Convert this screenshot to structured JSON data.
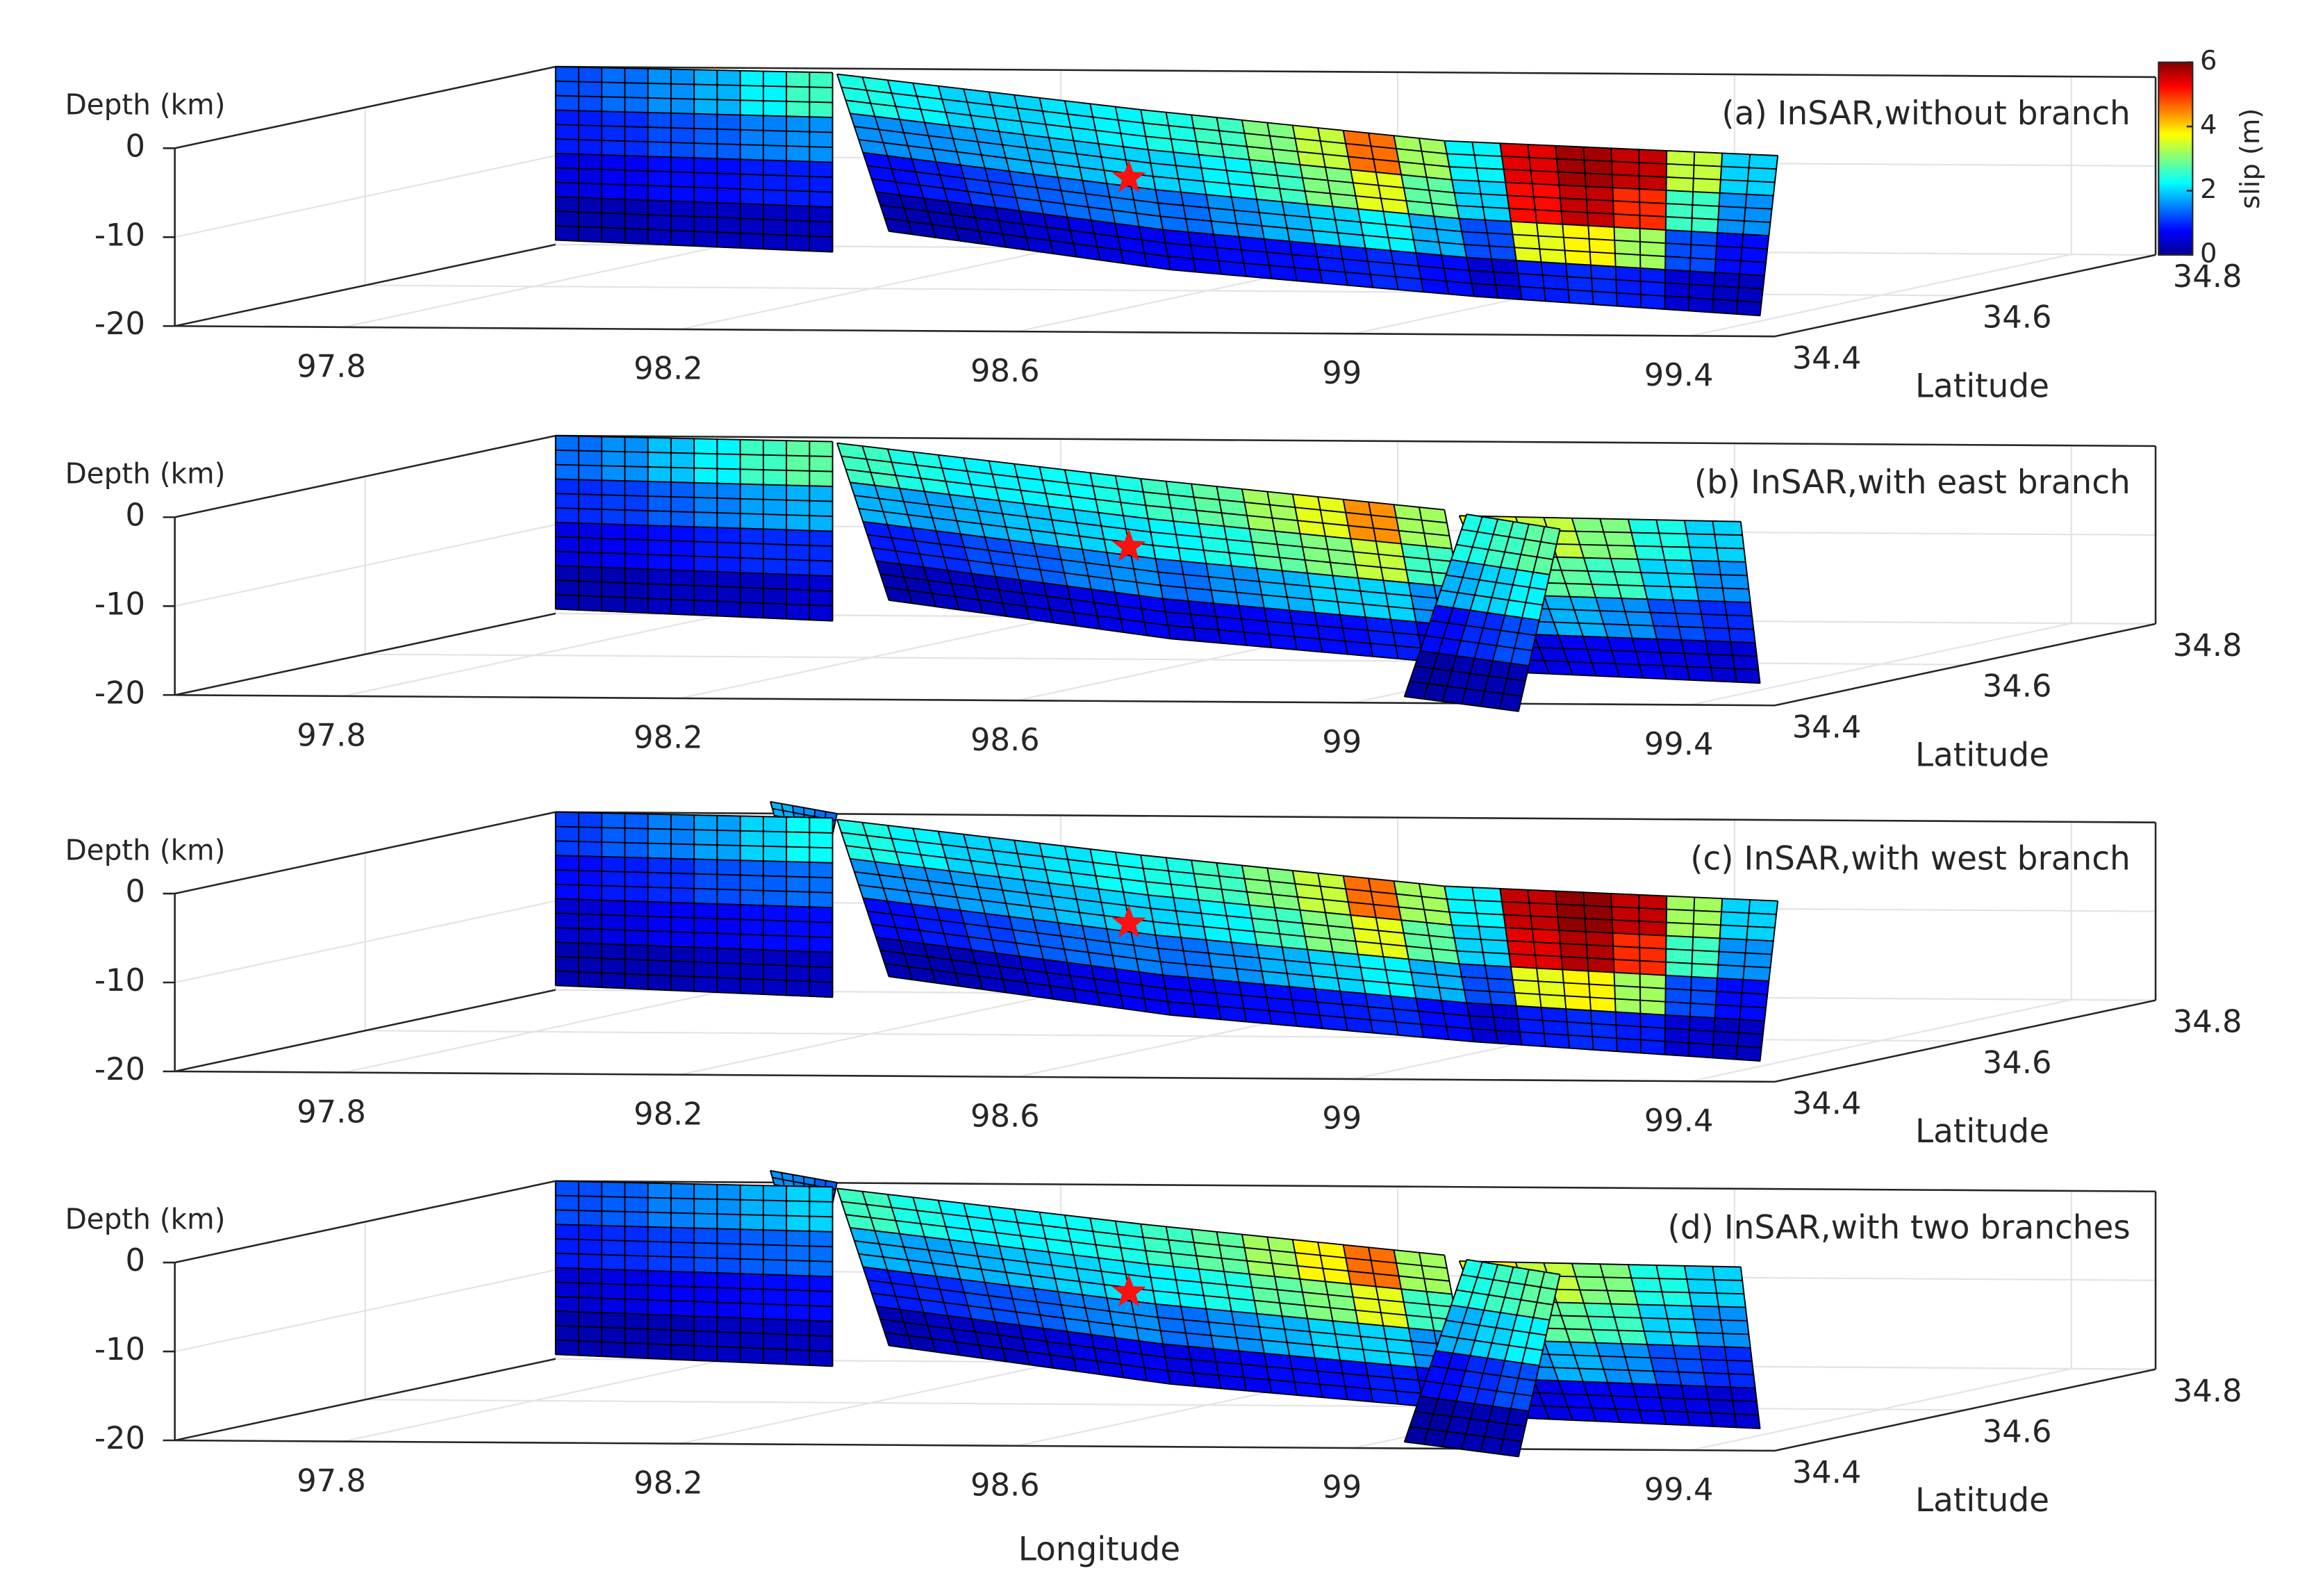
{
  "chart_data": [
    {
      "type": "surface3d",
      "title": "(a)  InSAR,without branch",
      "zlabel": "Depth (km)",
      "ylabel": "Latitude",
      "xlim": [
        97.6,
        99.5
      ],
      "ylim": [
        34.4,
        34.8
      ],
      "zlim": [
        -20,
        0
      ],
      "xticks": [
        97.8,
        98.2,
        98.6,
        99,
        99.4
      ],
      "yticks": [
        34.4,
        34.6,
        34.8
      ],
      "zticks": [
        0,
        -10,
        -20
      ],
      "grid": true,
      "colormap": "jet",
      "colorbar": {
        "label": "slip (m)",
        "lim": [
          0,
          6
        ],
        "ticks": [
          0,
          2,
          4,
          6
        ]
      },
      "segments": [
        {
          "slip": [
            [
              1.2,
              1.4,
              1.6,
              1.8,
              2.2,
              2.6
            ],
            [
              0.9,
              1.0,
              1.2,
              1.3,
              1.5,
              1.6
            ],
            [
              0.6,
              0.7,
              0.8,
              0.8,
              0.9,
              0.9
            ],
            [
              0.3,
              0.3,
              0.4,
              0.4,
              0.4,
              0.4
            ]
          ]
        },
        {
          "slip": [
            [
              2.4,
              2.2,
              2.0,
              2.0,
              2.1,
              2.2
            ],
            [
              1.6,
              1.6,
              1.7,
              1.8,
              1.9,
              2.0
            ],
            [
              0.8,
              0.9,
              1.1,
              1.3,
              1.4,
              1.5
            ],
            [
              0.3,
              0.3,
              0.4,
              0.5,
              0.6,
              0.7
            ]
          ]
        },
        {
          "slip": [
            [
              2.4,
              2.6,
              3.0,
              3.4,
              4.6,
              3.2
            ],
            [
              2.0,
              2.2,
              2.6,
              3.0,
              3.6,
              2.8
            ],
            [
              1.4,
              1.6,
              1.8,
              2.0,
              2.2,
              1.8
            ],
            [
              0.7,
              0.8,
              0.8,
              0.9,
              1.0,
              0.8
            ]
          ]
        },
        {
          "slip": [
            [
              2.2,
              5.4,
              5.8,
              5.6,
              3.4,
              2.0
            ],
            [
              2.0,
              5.2,
              5.6,
              5.0,
              2.6,
              1.6
            ],
            [
              1.2,
              3.6,
              3.8,
              3.2,
              1.2,
              0.8
            ],
            [
              0.5,
              0.9,
              1.0,
              0.9,
              0.5,
              0.4
            ]
          ]
        }
      ]
    },
    {
      "type": "surface3d",
      "title": "(b)  InSAR,with east branch",
      "zlabel": "Depth (km)",
      "ylabel": "Latitude",
      "xlim": [
        97.6,
        99.5
      ],
      "ylim": [
        34.4,
        34.8
      ],
      "zlim": [
        -20,
        0
      ],
      "xticks": [
        97.8,
        98.2,
        98.6,
        99,
        99.4
      ],
      "yticks": [
        34.4,
        34.6,
        34.8
      ],
      "zticks": [
        0,
        -10,
        -20
      ],
      "grid": true,
      "colormap": "jet",
      "segments": [
        {
          "slip": [
            [
              1.4,
              1.6,
              1.9,
              2.2,
              2.6,
              2.8
            ],
            [
              1.0,
              1.1,
              1.3,
              1.5,
              1.7,
              1.8
            ],
            [
              0.6,
              0.7,
              0.8,
              0.9,
              1.0,
              1.0
            ],
            [
              0.3,
              0.3,
              0.4,
              0.4,
              0.4,
              0.5
            ]
          ]
        },
        {
          "slip": [
            [
              2.6,
              2.4,
              2.2,
              2.2,
              2.3,
              2.4
            ],
            [
              1.8,
              1.7,
              1.8,
              1.9,
              2.0,
              2.1
            ],
            [
              0.9,
              1.0,
              1.2,
              1.3,
              1.5,
              1.6
            ],
            [
              0.3,
              0.4,
              0.4,
              0.5,
              0.6,
              0.7
            ]
          ]
        },
        {
          "slip": [
            [
              2.6,
              2.8,
              3.2,
              3.6,
              4.4,
              3.2
            ],
            [
              2.2,
              2.4,
              2.8,
              3.0,
              3.4,
              2.6
            ],
            [
              1.4,
              1.6,
              1.8,
              2.0,
              2.0,
              1.6
            ],
            [
              0.6,
              0.7,
              0.8,
              0.8,
              0.9,
              0.7
            ]
          ]
        },
        {
          "slip": [
            [
              3.6,
              3.4,
              3.0,
              2.4,
              2.0
            ],
            [
              2.8,
              2.8,
              2.6,
              2.0,
              1.6
            ],
            [
              1.6,
              1.8,
              1.6,
              1.2,
              1.0
            ],
            [
              0.6,
              0.7,
              0.7,
              0.6,
              0.5
            ]
          ]
        },
        {
          "slip": [
            [
              2.4,
              2.6,
              2.8
            ],
            [
              1.8,
              2.0,
              2.2
            ],
            [
              0.8,
              1.0,
              1.2
            ],
            [
              0.2,
              0.3,
              0.3
            ]
          ]
        }
      ]
    },
    {
      "type": "surface3d",
      "title": "(c)  InSAR,with west branch",
      "zlabel": "Depth (km)",
      "ylabel": "Latitude",
      "xlim": [
        97.6,
        99.5
      ],
      "ylim": [
        34.4,
        34.8
      ],
      "zlim": [
        -20,
        0
      ],
      "xticks": [
        97.8,
        98.2,
        98.6,
        99,
        99.4
      ],
      "yticks": [
        34.4,
        34.6,
        34.8
      ],
      "zticks": [
        0,
        -10,
        -20
      ],
      "grid": true,
      "colormap": "jet",
      "segments": [
        {
          "slip": [
            [
              1.8,
              1.6,
              1.4
            ]
          ]
        },
        {
          "slip": [
            [
              1.1,
              1.3,
              1.5,
              1.7,
              2.0,
              2.3
            ],
            [
              0.8,
              0.9,
              1.0,
              1.2,
              1.3,
              1.4
            ],
            [
              0.5,
              0.6,
              0.7,
              0.7,
              0.8,
              0.8
            ],
            [
              0.3,
              0.3,
              0.3,
              0.4,
              0.4,
              0.4
            ]
          ]
        },
        {
          "slip": [
            [
              2.4,
              2.2,
              2.0,
              2.0,
              2.1,
              2.3
            ],
            [
              1.6,
              1.6,
              1.7,
              1.8,
              1.9,
              2.0
            ],
            [
              0.8,
              0.9,
              1.1,
              1.3,
              1.4,
              1.5
            ],
            [
              0.3,
              0.3,
              0.4,
              0.5,
              0.6,
              0.7
            ]
          ]
        },
        {
          "slip": [
            [
              2.4,
              2.6,
              3.0,
              3.4,
              4.6,
              3.2
            ],
            [
              2.0,
              2.2,
              2.6,
              3.0,
              3.6,
              2.8
            ],
            [
              1.4,
              1.6,
              1.8,
              2.0,
              2.2,
              1.8
            ],
            [
              0.7,
              0.8,
              0.8,
              0.9,
              1.0,
              0.8
            ]
          ]
        },
        {
          "slip": [
            [
              2.2,
              5.6,
              5.9,
              5.6,
              3.2,
              2.0
            ],
            [
              2.0,
              5.4,
              5.7,
              5.0,
              2.6,
              1.6
            ],
            [
              1.2,
              3.6,
              3.8,
              3.2,
              1.2,
              0.8
            ],
            [
              0.5,
              0.9,
              1.0,
              0.9,
              0.5,
              0.4
            ]
          ]
        }
      ]
    },
    {
      "type": "surface3d",
      "title": "(d)  InSAR,with two branches",
      "zlabel": "Depth (km)",
      "ylabel": "Latitude",
      "xlabel": "Longitude",
      "xlim": [
        97.6,
        99.5
      ],
      "ylim": [
        34.4,
        34.8
      ],
      "zlim": [
        -20,
        0
      ],
      "xticks": [
        97.8,
        98.2,
        98.6,
        99,
        99.4
      ],
      "yticks": [
        34.4,
        34.6,
        34.8
      ],
      "zticks": [
        0,
        -10,
        -20
      ],
      "grid": true,
      "colormap": "jet",
      "segments": [
        {
          "slip": [
            [
              1.6,
              1.5,
              1.3
            ]
          ]
        },
        {
          "slip": [
            [
              1.2,
              1.3,
              1.5,
              1.6,
              1.8,
              2.0
            ],
            [
              0.9,
              1.0,
              1.1,
              1.2,
              1.3,
              1.4
            ],
            [
              0.5,
              0.6,
              0.7,
              0.7,
              0.8,
              0.8
            ],
            [
              0.3,
              0.3,
              0.3,
              0.4,
              0.4,
              0.4
            ]
          ]
        },
        {
          "slip": [
            [
              2.6,
              2.4,
              2.2,
              2.2,
              2.3,
              2.4
            ],
            [
              1.8,
              1.7,
              1.8,
              1.9,
              2.0,
              2.1
            ],
            [
              0.9,
              1.0,
              1.2,
              1.3,
              1.5,
              1.6
            ],
            [
              0.3,
              0.4,
              0.4,
              0.5,
              0.6,
              0.7
            ]
          ]
        },
        {
          "slip": [
            [
              2.6,
              2.8,
              3.2,
              3.8,
              4.6,
              3.2
            ],
            [
              2.2,
              2.4,
              2.8,
              3.0,
              3.6,
              2.6
            ],
            [
              1.4,
              1.6,
              1.8,
              2.0,
              2.0,
              1.6
            ],
            [
              0.6,
              0.7,
              0.8,
              0.8,
              0.9,
              0.7
            ]
          ]
        },
        {
          "slip": [
            [
              3.8,
              3.4,
              3.0,
              2.4,
              2.0
            ],
            [
              2.8,
              2.8,
              2.6,
              2.0,
              1.6
            ],
            [
              1.6,
              1.8,
              1.6,
              1.2,
              1.0
            ],
            [
              0.6,
              0.7,
              0.7,
              0.6,
              0.5
            ]
          ]
        },
        {
          "slip": [
            [
              2.4,
              2.6,
              2.8
            ],
            [
              1.8,
              2.0,
              2.2
            ],
            [
              0.8,
              1.0,
              1.2
            ],
            [
              0.2,
              0.3,
              0.3
            ]
          ]
        }
      ]
    }
  ]
}
